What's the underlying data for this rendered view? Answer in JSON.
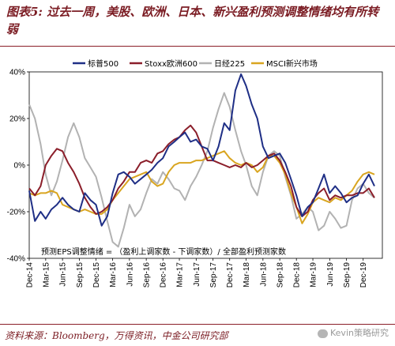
{
  "title": "图表5: 过去一周，美股、欧洲、日本、新兴盈利预测调整情绪均有所转弱",
  "source": "资料来源：Bloomberg，万得资讯，中金公司研究部",
  "watermark": "Kevin策略研究",
  "chart_data": {
    "type": "line",
    "title": "",
    "xlabel": "",
    "ylabel": "",
    "ylim": [
      -40,
      40
    ],
    "yticks": [
      40,
      20,
      0,
      -20,
      -40
    ],
    "ytick_labels": [
      "40%",
      "20%",
      "0%",
      "-20%",
      "-40%"
    ],
    "xlim": [
      "2014-12-01",
      "2020-03-15"
    ],
    "xticks": [
      {
        "date": "2014-12-01",
        "label": "Dec-14"
      },
      {
        "date": "2015-03-01",
        "label": "Mar-15"
      },
      {
        "date": "2015-06-01",
        "label": "Jun-15"
      },
      {
        "date": "2015-09-01",
        "label": "Sep-15"
      },
      {
        "date": "2015-12-01",
        "label": "Dec-15"
      },
      {
        "date": "2016-03-01",
        "label": "Mar-16"
      },
      {
        "date": "2016-06-01",
        "label": "Jun-16"
      },
      {
        "date": "2016-09-01",
        "label": "Sep-16"
      },
      {
        "date": "2016-12-01",
        "label": "Dec-16"
      },
      {
        "date": "2017-03-01",
        "label": "Mar-17"
      },
      {
        "date": "2017-06-01",
        "label": "Jun-17"
      },
      {
        "date": "2017-09-01",
        "label": "Sep-17"
      },
      {
        "date": "2017-12-01",
        "label": "Dec-17"
      },
      {
        "date": "2018-03-01",
        "label": "Mar-18"
      },
      {
        "date": "2018-06-01",
        "label": "Jun-18"
      },
      {
        "date": "2018-09-01",
        "label": "Sep-18"
      },
      {
        "date": "2018-12-01",
        "label": "Dec-18"
      },
      {
        "date": "2019-03-01",
        "label": "Mar-19"
      },
      {
        "date": "2019-06-01",
        "label": "Jun-19"
      },
      {
        "date": "2019-09-01",
        "label": "Sep-19"
      },
      {
        "date": "2019-12-01",
        "label": "Dec-19"
      }
    ],
    "grid": false,
    "legend_position": "top",
    "annotation": "预测EPS调整情绪 = （盈利上调家数 - 下调家数）/ 全部盈利预测家数",
    "series": [
      {
        "name": "标普500",
        "color": "#1f2f86",
        "points": [
          [
            "2014-12-01",
            -11
          ],
          [
            "2015-01-01",
            -24
          ],
          [
            "2015-02-01",
            -20
          ],
          [
            "2015-03-01",
            -23
          ],
          [
            "2015-04-01",
            -19
          ],
          [
            "2015-05-01",
            -17
          ],
          [
            "2015-06-01",
            -14
          ],
          [
            "2015-07-01",
            -17
          ],
          [
            "2015-08-01",
            -19
          ],
          [
            "2015-09-01",
            -20
          ],
          [
            "2015-10-01",
            -12
          ],
          [
            "2015-11-01",
            -15
          ],
          [
            "2015-12-01",
            -17
          ],
          [
            "2016-01-01",
            -26
          ],
          [
            "2016-02-01",
            -22
          ],
          [
            "2016-03-01",
            -12
          ],
          [
            "2016-04-01",
            -4
          ],
          [
            "2016-05-01",
            -3
          ],
          [
            "2016-06-01",
            -5
          ],
          [
            "2016-07-01",
            -8
          ],
          [
            "2016-08-01",
            -6
          ],
          [
            "2016-09-01",
            -4
          ],
          [
            "2016-10-01",
            -2
          ],
          [
            "2016-11-01",
            1
          ],
          [
            "2016-12-01",
            3
          ],
          [
            "2017-01-01",
            8
          ],
          [
            "2017-02-01",
            10
          ],
          [
            "2017-03-01",
            12
          ],
          [
            "2017-04-01",
            14
          ],
          [
            "2017-05-01",
            10
          ],
          [
            "2017-06-01",
            11
          ],
          [
            "2017-07-01",
            8
          ],
          [
            "2017-08-01",
            7
          ],
          [
            "2017-09-01",
            2
          ],
          [
            "2017-10-01",
            8
          ],
          [
            "2017-11-01",
            18
          ],
          [
            "2017-12-01",
            15
          ],
          [
            "2018-01-01",
            32
          ],
          [
            "2018-02-01",
            39
          ],
          [
            "2018-03-01",
            34
          ],
          [
            "2018-04-01",
            26
          ],
          [
            "2018-05-01",
            20
          ],
          [
            "2018-06-01",
            8
          ],
          [
            "2018-07-01",
            3
          ],
          [
            "2018-08-01",
            4
          ],
          [
            "2018-09-01",
            5
          ],
          [
            "2018-10-01",
            1
          ],
          [
            "2018-11-01",
            -6
          ],
          [
            "2018-12-01",
            -13
          ],
          [
            "2019-01-01",
            -22
          ],
          [
            "2019-02-01",
            -18
          ],
          [
            "2019-03-01",
            -16
          ],
          [
            "2019-04-01",
            -10
          ],
          [
            "2019-05-01",
            -4
          ],
          [
            "2019-06-01",
            -12
          ],
          [
            "2019-07-01",
            -9
          ],
          [
            "2019-08-01",
            -12
          ],
          [
            "2019-09-01",
            -16
          ],
          [
            "2019-10-01",
            -14
          ],
          [
            "2019-11-01",
            -13
          ],
          [
            "2019-12-01",
            -8
          ],
          [
            "2020-01-01",
            -4
          ],
          [
            "2020-02-01",
            -9
          ]
        ]
      },
      {
        "name": "Stoxx欧洲600",
        "color": "#8b1e2a",
        "points": [
          [
            "2014-12-01",
            -10
          ],
          [
            "2015-01-01",
            -13
          ],
          [
            "2015-02-01",
            -9
          ],
          [
            "2015-03-01",
            0
          ],
          [
            "2015-04-01",
            4
          ],
          [
            "2015-05-01",
            7
          ],
          [
            "2015-06-01",
            6
          ],
          [
            "2015-07-01",
            1
          ],
          [
            "2015-08-01",
            -3
          ],
          [
            "2015-09-01",
            -8
          ],
          [
            "2015-10-01",
            -14
          ],
          [
            "2015-11-01",
            -18
          ],
          [
            "2015-12-01",
            -21
          ],
          [
            "2016-01-01",
            -20
          ],
          [
            "2016-02-01",
            -18
          ],
          [
            "2016-03-01",
            -15
          ],
          [
            "2016-04-01",
            -10
          ],
          [
            "2016-05-01",
            -7
          ],
          [
            "2016-06-01",
            -3
          ],
          [
            "2016-07-01",
            -3
          ],
          [
            "2016-08-01",
            1
          ],
          [
            "2016-09-01",
            2
          ],
          [
            "2016-10-01",
            1
          ],
          [
            "2016-11-01",
            5
          ],
          [
            "2016-12-01",
            6
          ],
          [
            "2017-01-01",
            9
          ],
          [
            "2017-02-01",
            11
          ],
          [
            "2017-03-01",
            12
          ],
          [
            "2017-04-01",
            15
          ],
          [
            "2017-05-01",
            17
          ],
          [
            "2017-06-01",
            14
          ],
          [
            "2017-07-01",
            8
          ],
          [
            "2017-08-01",
            2
          ],
          [
            "2017-09-01",
            2
          ],
          [
            "2017-10-01",
            1
          ],
          [
            "2017-11-01",
            0
          ],
          [
            "2017-12-01",
            -1
          ],
          [
            "2018-01-01",
            0
          ],
          [
            "2018-02-01",
            -1
          ],
          [
            "2018-03-01",
            1
          ],
          [
            "2018-04-01",
            -1
          ],
          [
            "2018-05-01",
            0
          ],
          [
            "2018-06-01",
            2
          ],
          [
            "2018-07-01",
            4
          ],
          [
            "2018-08-01",
            5
          ],
          [
            "2018-09-01",
            2
          ],
          [
            "2018-10-01",
            -3
          ],
          [
            "2018-11-01",
            -9
          ],
          [
            "2018-12-01",
            -18
          ],
          [
            "2019-01-01",
            -22
          ],
          [
            "2019-02-01",
            -20
          ],
          [
            "2019-03-01",
            -15
          ],
          [
            "2019-04-01",
            -12
          ],
          [
            "2019-05-01",
            -10
          ],
          [
            "2019-06-01",
            -15
          ],
          [
            "2019-07-01",
            -13
          ],
          [
            "2019-08-01",
            -14
          ],
          [
            "2019-09-01",
            -13
          ],
          [
            "2019-10-01",
            -13
          ],
          [
            "2019-11-01",
            -12
          ],
          [
            "2019-12-01",
            -12
          ],
          [
            "2020-01-01",
            -10
          ],
          [
            "2020-02-01",
            -14
          ]
        ]
      },
      {
        "name": "日经225",
        "color": "#b2b2b2",
        "points": [
          [
            "2014-12-01",
            26
          ],
          [
            "2015-01-01",
            20
          ],
          [
            "2015-02-01",
            9
          ],
          [
            "2015-03-01",
            -4
          ],
          [
            "2015-04-01",
            -13
          ],
          [
            "2015-05-01",
            -7
          ],
          [
            "2015-06-01",
            2
          ],
          [
            "2015-07-01",
            12
          ],
          [
            "2015-08-01",
            18
          ],
          [
            "2015-09-01",
            12
          ],
          [
            "2015-10-01",
            3
          ],
          [
            "2015-11-01",
            -1
          ],
          [
            "2015-12-01",
            -5
          ],
          [
            "2016-01-01",
            -14
          ],
          [
            "2016-02-01",
            -24
          ],
          [
            "2016-03-01",
            -33
          ],
          [
            "2016-04-01",
            -35
          ],
          [
            "2016-05-01",
            -27
          ],
          [
            "2016-06-01",
            -17
          ],
          [
            "2016-07-01",
            -22
          ],
          [
            "2016-08-01",
            -19
          ],
          [
            "2016-09-01",
            -12
          ],
          [
            "2016-10-01",
            -6
          ],
          [
            "2016-11-01",
            -8
          ],
          [
            "2016-12-01",
            -3
          ],
          [
            "2017-01-01",
            -6
          ],
          [
            "2017-02-01",
            -10
          ],
          [
            "2017-03-01",
            -11
          ],
          [
            "2017-04-01",
            -15
          ],
          [
            "2017-05-01",
            -9
          ],
          [
            "2017-06-01",
            -5
          ],
          [
            "2017-07-01",
            0
          ],
          [
            "2017-08-01",
            6
          ],
          [
            "2017-09-01",
            16
          ],
          [
            "2017-10-01",
            24
          ],
          [
            "2017-11-01",
            31
          ],
          [
            "2017-12-01",
            25
          ],
          [
            "2018-01-01",
            15
          ],
          [
            "2018-02-01",
            6
          ],
          [
            "2018-03-01",
            0
          ],
          [
            "2018-04-01",
            -9
          ],
          [
            "2018-05-01",
            -13
          ],
          [
            "2018-06-01",
            -3
          ],
          [
            "2018-07-01",
            4
          ],
          [
            "2018-08-01",
            6
          ],
          [
            "2018-09-01",
            4
          ],
          [
            "2018-10-01",
            -5
          ],
          [
            "2018-11-01",
            -13
          ],
          [
            "2018-12-01",
            -23
          ],
          [
            "2019-01-01",
            -21
          ],
          [
            "2019-02-01",
            -18
          ],
          [
            "2019-03-01",
            -20
          ],
          [
            "2019-04-01",
            -28
          ],
          [
            "2019-05-01",
            -26
          ],
          [
            "2019-06-01",
            -20
          ],
          [
            "2019-07-01",
            -23
          ],
          [
            "2019-08-01",
            -27
          ],
          [
            "2019-09-01",
            -26
          ],
          [
            "2019-10-01",
            -15
          ],
          [
            "2019-11-01",
            -10
          ],
          [
            "2019-12-01",
            -8
          ],
          [
            "2020-01-01",
            -12
          ],
          [
            "2020-02-01",
            -14
          ]
        ]
      },
      {
        "name": "MSCI新兴市场",
        "color": "#d9a520",
        "points": [
          [
            "2014-12-01",
            -12
          ],
          [
            "2015-01-01",
            -13
          ],
          [
            "2015-02-01",
            -12
          ],
          [
            "2015-03-01",
            -12
          ],
          [
            "2015-04-01",
            -11
          ],
          [
            "2015-05-01",
            -12
          ],
          [
            "2015-06-01",
            -17
          ],
          [
            "2015-07-01",
            -18
          ],
          [
            "2015-08-01",
            -19
          ],
          [
            "2015-09-01",
            -20
          ],
          [
            "2015-10-01",
            -19
          ],
          [
            "2015-11-01",
            -20
          ],
          [
            "2015-12-01",
            -21
          ],
          [
            "2016-01-01",
            -21
          ],
          [
            "2016-02-01",
            -19
          ],
          [
            "2016-03-01",
            -15
          ],
          [
            "2016-04-01",
            -12
          ],
          [
            "2016-05-01",
            -9
          ],
          [
            "2016-06-01",
            -6
          ],
          [
            "2016-07-01",
            -5
          ],
          [
            "2016-08-01",
            -4
          ],
          [
            "2016-09-01",
            -3
          ],
          [
            "2016-10-01",
            -7
          ],
          [
            "2016-11-01",
            -9
          ],
          [
            "2016-12-01",
            -8
          ],
          [
            "2017-01-01",
            -3
          ],
          [
            "2017-02-01",
            0
          ],
          [
            "2017-03-01",
            1
          ],
          [
            "2017-04-01",
            1
          ],
          [
            "2017-05-01",
            1
          ],
          [
            "2017-06-01",
            2
          ],
          [
            "2017-07-01",
            2
          ],
          [
            "2017-08-01",
            3
          ],
          [
            "2017-09-01",
            4
          ],
          [
            "2017-10-01",
            5
          ],
          [
            "2017-11-01",
            6
          ],
          [
            "2017-12-01",
            3
          ],
          [
            "2018-01-01",
            1
          ],
          [
            "2018-02-01",
            0
          ],
          [
            "2018-03-01",
            1
          ],
          [
            "2018-04-01",
            0
          ],
          [
            "2018-05-01",
            -3
          ],
          [
            "2018-06-01",
            -1
          ],
          [
            "2018-07-01",
            4
          ],
          [
            "2018-08-01",
            4
          ],
          [
            "2018-09-01",
            1
          ],
          [
            "2018-10-01",
            -4
          ],
          [
            "2018-11-01",
            -12
          ],
          [
            "2018-12-01",
            -18
          ],
          [
            "2019-01-01",
            -25
          ],
          [
            "2019-02-01",
            -21
          ],
          [
            "2019-03-01",
            -16
          ],
          [
            "2019-04-01",
            -14
          ],
          [
            "2019-05-01",
            -15
          ],
          [
            "2019-06-01",
            -16
          ],
          [
            "2019-07-01",
            -14
          ],
          [
            "2019-08-01",
            -15
          ],
          [
            "2019-09-01",
            -13
          ],
          [
            "2019-10-01",
            -11
          ],
          [
            "2019-11-01",
            -7
          ],
          [
            "2019-12-01",
            -4
          ],
          [
            "2020-01-01",
            -3
          ],
          [
            "2020-02-01",
            -4
          ]
        ]
      }
    ]
  }
}
